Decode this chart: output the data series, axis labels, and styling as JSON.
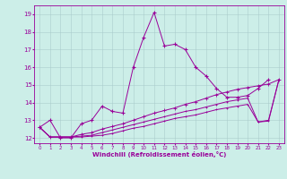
{
  "xlabel": "Windchill (Refroidissement éolien,°C)",
  "background_color": "#cceee8",
  "grid_color": "#aacccc",
  "line_color": "#990099",
  "xlim": [
    -0.5,
    23.5
  ],
  "ylim": [
    11.7,
    19.5
  ],
  "xticks": [
    0,
    1,
    2,
    3,
    4,
    5,
    6,
    7,
    8,
    9,
    10,
    11,
    12,
    13,
    14,
    15,
    16,
    17,
    18,
    19,
    20,
    21,
    22,
    23
  ],
  "yticks": [
    12,
    13,
    14,
    15,
    16,
    17,
    18,
    19
  ],
  "line1_x": [
    0,
    1,
    2,
    3,
    4,
    5,
    6,
    7,
    8,
    9,
    10,
    11,
    12,
    13,
    14,
    15,
    16,
    17,
    18,
    19,
    20,
    21,
    22
  ],
  "line1_y": [
    12.6,
    13.0,
    12.0,
    12.0,
    12.8,
    13.0,
    13.8,
    13.5,
    13.4,
    16.0,
    17.7,
    19.1,
    17.2,
    17.3,
    17.0,
    16.0,
    15.5,
    14.8,
    14.3,
    14.3,
    14.4,
    14.8,
    15.3
  ],
  "line2_x": [
    0,
    1,
    2,
    3,
    4,
    5,
    6,
    7,
    8,
    9,
    10,
    11,
    12,
    13,
    14,
    15,
    16,
    17,
    18,
    19,
    20,
    21,
    22,
    23
  ],
  "line2_y": [
    12.6,
    12.05,
    12.05,
    12.05,
    12.2,
    12.3,
    12.5,
    12.65,
    12.8,
    13.0,
    13.2,
    13.4,
    13.55,
    13.7,
    13.9,
    14.05,
    14.25,
    14.45,
    14.6,
    14.75,
    14.85,
    14.95,
    15.05,
    15.3
  ],
  "line3_x": [
    0,
    1,
    2,
    3,
    4,
    5,
    6,
    7,
    8,
    9,
    10,
    11,
    12,
    13,
    14,
    15,
    16,
    17,
    18,
    19,
    20,
    21,
    22,
    23
  ],
  "line3_y": [
    12.6,
    12.05,
    12.05,
    12.05,
    12.1,
    12.15,
    12.3,
    12.45,
    12.6,
    12.75,
    12.9,
    13.05,
    13.2,
    13.35,
    13.5,
    13.6,
    13.75,
    13.9,
    14.05,
    14.15,
    14.25,
    12.9,
    13.0,
    15.3
  ],
  "line4_x": [
    0,
    1,
    2,
    3,
    4,
    5,
    6,
    7,
    8,
    9,
    10,
    11,
    12,
    13,
    14,
    15,
    16,
    17,
    18,
    19,
    20,
    21,
    22,
    23
  ],
  "line4_y": [
    12.6,
    12.05,
    12.05,
    12.05,
    12.05,
    12.1,
    12.15,
    12.25,
    12.4,
    12.55,
    12.65,
    12.8,
    12.95,
    13.1,
    13.2,
    13.3,
    13.45,
    13.6,
    13.7,
    13.8,
    13.9,
    12.9,
    12.95,
    15.3
  ]
}
